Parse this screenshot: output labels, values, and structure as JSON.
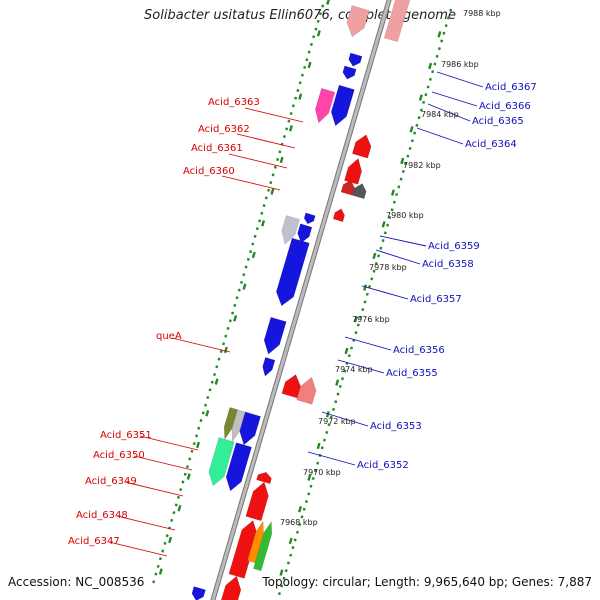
{
  "title": "Solibacter usitatus Ellin6076, complete genome",
  "accession": "Accession: NC_008536",
  "summary": "Topology: circular; Length: 9,965,640 bp; Genes: 7,887",
  "colors": {
    "forward_gene": "#ee1111",
    "reverse_gene": "#1515dd",
    "backbone": "#999999",
    "tick": "#228822",
    "label_left": "#d80000",
    "label_right": "#1010b8"
  },
  "ticks": [
    "7968 kbp",
    "7970 kbp",
    "7972 kbp",
    "7974 kbp",
    "7976 kbp",
    "7978 kbp",
    "7980 kbp",
    "7982 kbp",
    "7984 kbp",
    "7986 kbp",
    "7988 kbp"
  ],
  "left_labels": [
    "Acid_6363",
    "Acid_6362",
    "Acid_6361",
    "Acid_6360",
    "queA",
    "Acid_6351",
    "Acid_6350",
    "Acid_6349",
    "Acid_6348",
    "Acid_6347"
  ],
  "right_labels": [
    "Acid_6367",
    "Acid_6366",
    "Acid_6365",
    "Acid_6364",
    "Acid_6359",
    "Acid_6358",
    "Acid_6357",
    "Acid_6356",
    "Acid_6355",
    "Acid_6353",
    "Acid_6352"
  ]
}
